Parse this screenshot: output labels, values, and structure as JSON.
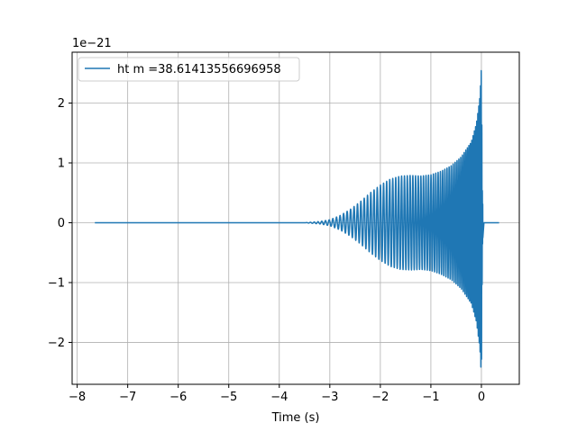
{
  "chart_data": {
    "type": "line",
    "title": "",
    "xlabel": "Time (s)",
    "ylabel": "",
    "y_offset_label": "1e−21",
    "xlim": [
      -8.1,
      0.75
    ],
    "ylim": [
      -2.7,
      2.85
    ],
    "grid": true,
    "legend_position": "top-left",
    "x_ticks": [
      -8,
      -7,
      -6,
      -5,
      -4,
      -3,
      -2,
      -1,
      0
    ],
    "x_tick_labels": [
      "−8",
      "−7",
      "−6",
      "−5",
      "−4",
      "−3",
      "−2",
      "−1",
      "0"
    ],
    "y_ticks": [
      -2,
      -1,
      0,
      1,
      2
    ],
    "y_tick_labels": [
      "−2",
      "−1",
      "0",
      "1",
      "2"
    ],
    "series": [
      {
        "name": "ht m =38.61413556696958",
        "color": "#1f77b4",
        "t_start": -7.65,
        "t_end": 0.35,
        "merger_time": 0.0,
        "peak_amplitude": 2.6,
        "envelope_t": [
          -3.5,
          -3.2,
          -3.0,
          -2.8,
          -2.6,
          -2.4,
          -2.2,
          -2.0,
          -1.8,
          -1.6,
          -1.4,
          -1.2,
          -1.0,
          -0.8,
          -0.6,
          -0.4,
          -0.2,
          -0.1,
          -0.03,
          0.0,
          0.02,
          0.05
        ],
        "envelope_a": [
          0.0,
          0.02,
          0.05,
          0.12,
          0.22,
          0.35,
          0.5,
          0.63,
          0.73,
          0.78,
          0.79,
          0.78,
          0.8,
          0.86,
          0.95,
          1.1,
          1.35,
          1.65,
          2.1,
          2.6,
          0.4,
          0.0
        ]
      }
    ]
  }
}
